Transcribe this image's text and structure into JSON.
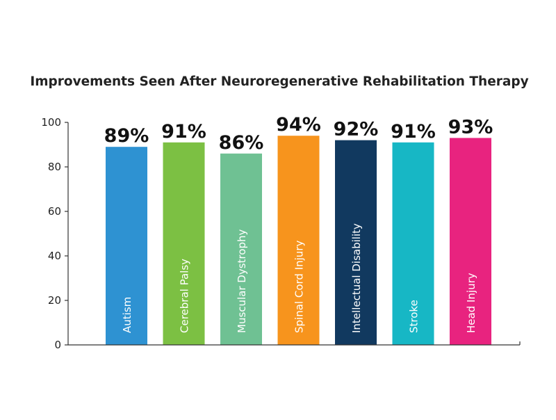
{
  "chart_data": {
    "type": "bar",
    "title": "Improvements Seen After Neuroregenerative Rehabilitation Therapy",
    "xlabel": "",
    "ylabel": "",
    "ylim": [
      0,
      100
    ],
    "yticks": [
      0,
      20,
      40,
      60,
      80,
      100
    ],
    "grid": false,
    "legend": "none",
    "categories": [
      "Autism",
      "Cerebral Palsy",
      "Muscular Dystrophy",
      "Spinal Cord Injury",
      "Intellectual Disability",
      "Stroke",
      "Head Injury"
    ],
    "values": [
      89,
      91,
      86,
      94,
      92,
      91,
      93
    ],
    "value_labels": [
      "89%",
      "91%",
      "86%",
      "94%",
      "92%",
      "91%",
      "93%"
    ],
    "colors": [
      "#2e92d2",
      "#7cc043",
      "#6fc193",
      "#f7941d",
      "#11395f",
      "#17b7c5",
      "#e8237f"
    ]
  }
}
